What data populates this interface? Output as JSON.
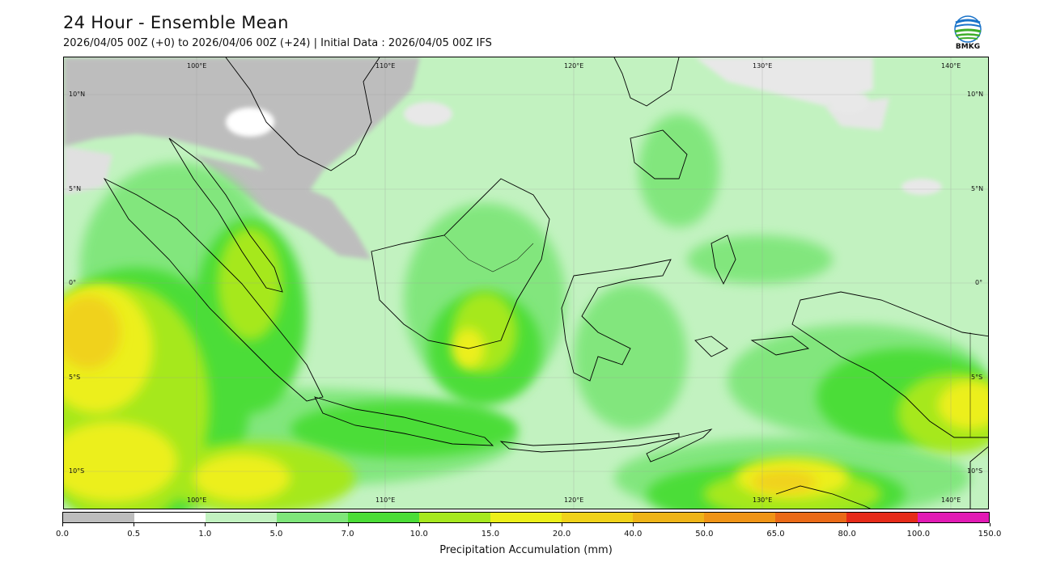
{
  "header": {
    "title": "24 Hour - Ensemble Mean",
    "subtitle": "2026/04/05 00Z (+0) to 2026/04/06 00Z (+24) | Initial Data : 2026/04/05 00Z IFS",
    "logo_text": "BMKG"
  },
  "map": {
    "lon_labels_top": [
      "100°E",
      "110°E",
      "120°E",
      "130°E",
      "140°E"
    ],
    "lon_labels_bottom": [
      "100°E",
      "110°E",
      "120°E",
      "130°E",
      "140°E"
    ],
    "lat_labels_left": [
      "10°N",
      "5°N",
      "0°",
      "5°S",
      "10°S"
    ],
    "lat_labels_right": [
      "10°N",
      "5°N",
      "0°",
      "5°S",
      "10°S"
    ]
  },
  "colorbar": {
    "label": "Precipitation Accumulation (mm)",
    "ticks": [
      "0.0",
      "0.5",
      "1.0",
      "5.0",
      "7.0",
      "10.0",
      "15.0",
      "20.0",
      "40.0",
      "50.0",
      "65.0",
      "80.0",
      "100.0",
      "150.0"
    ],
    "colors": [
      "#bdbdbd",
      "#ffffff",
      "#c2f2c0",
      "#7fe67a",
      "#4bdd37",
      "#a6e81e",
      "#ecef1a",
      "#f0d21a",
      "#eeb418",
      "#ef9416",
      "#ea6a17",
      "#e62b19",
      "#e21ab4"
    ]
  }
}
